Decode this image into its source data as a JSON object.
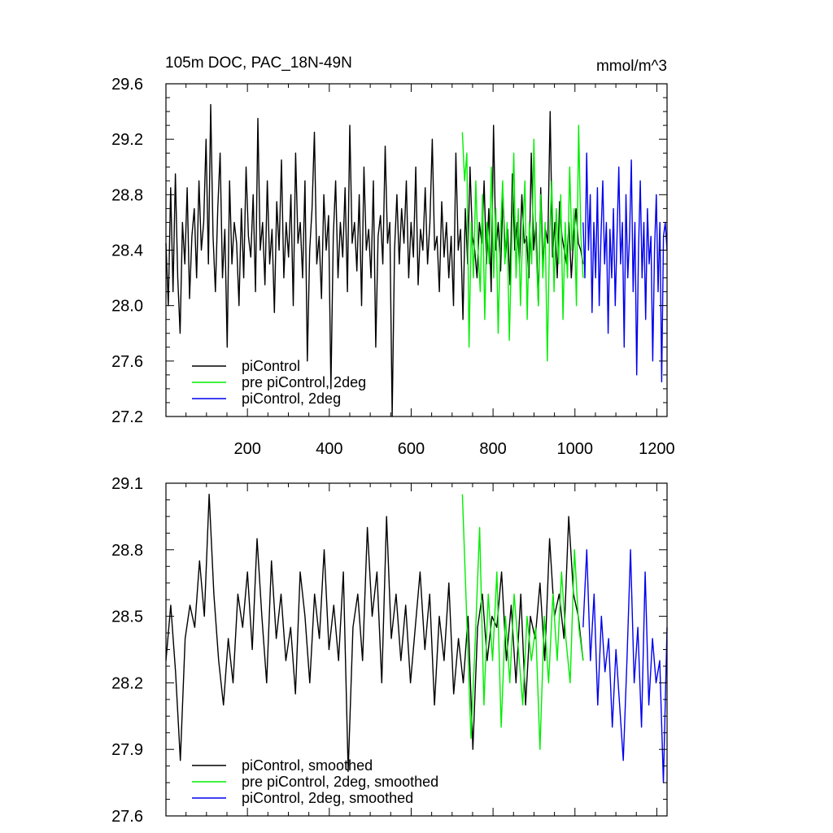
{
  "figure": {
    "title": "105m DOC, PAC_18N-49N",
    "units": "mmol/m^3"
  },
  "chart_data": [
    {
      "type": "line",
      "panel": "top",
      "xlim": [
        1,
        1225
      ],
      "ylim": [
        27.2,
        29.6
      ],
      "x_ticks": [
        200,
        400,
        600,
        800,
        1000,
        1200
      ],
      "y_ticks": [
        27.2,
        27.6,
        28.0,
        28.4,
        28.8,
        29.2,
        29.6
      ],
      "y_tick_labels": [
        "27.2",
        "27.6",
        "28.0",
        "28.4",
        "28.8",
        "29.2",
        "29.6"
      ],
      "legend_position": "bottom-left",
      "series": [
        {
          "name": "piControl",
          "color": "#000000",
          "x_start": 1,
          "x_end": 1020,
          "values": [
            28.45,
            28.0,
            28.85,
            28.1,
            28.95,
            28.2,
            27.8,
            28.6,
            28.3,
            28.85,
            28.05,
            28.5,
            28.7,
            28.2,
            28.9,
            28.4,
            28.6,
            29.2,
            28.3,
            29.45,
            28.5,
            28.1,
            28.7,
            29.1,
            28.2,
            28.55,
            27.7,
            28.9,
            28.3,
            28.6,
            28.45,
            28.0,
            28.7,
            28.2,
            29.0,
            28.5,
            28.35,
            28.8,
            28.1,
            29.35,
            28.4,
            28.6,
            28.15,
            28.9,
            28.3,
            28.55,
            27.95,
            28.75,
            28.4,
            29.05,
            28.2,
            28.6,
            28.35,
            28.8,
            28.0,
            29.1,
            28.45,
            28.6,
            28.2,
            28.9,
            27.6,
            28.4,
            28.7,
            29.25,
            28.3,
            28.5,
            28.05,
            28.8,
            28.4,
            28.65,
            27.4,
            28.5,
            28.9,
            28.2,
            28.6,
            28.35,
            28.85,
            28.1,
            29.3,
            28.45,
            28.6,
            28.25,
            28.8,
            28.0,
            29.0,
            28.4,
            28.55,
            28.2,
            28.9,
            27.7,
            28.5,
            28.65,
            28.3,
            29.15,
            28.45,
            28.6,
            27.2,
            28.4,
            28.8,
            28.3,
            28.7,
            28.45,
            28.9,
            28.2,
            28.6,
            28.35,
            29.0,
            28.15,
            28.55,
            28.4,
            28.85,
            28.3,
            28.6,
            29.2,
            28.4,
            28.5,
            28.1,
            28.75,
            28.35,
            28.6,
            28.2,
            28.5,
            28.0,
            29.1,
            28.4,
            28.55,
            27.9,
            28.7,
            28.3,
            29.0,
            28.5,
            28.4,
            28.2,
            28.6,
            28.45,
            28.9,
            28.3,
            28.7,
            28.1,
            29.3,
            28.4,
            28.6,
            28.25,
            28.8,
            28.35,
            28.55,
            28.15,
            28.95,
            28.4,
            28.6,
            28.3,
            28.8,
            28.45,
            28.5,
            28.2,
            29.1,
            28.4,
            28.6,
            28.0,
            28.85,
            28.3,
            28.55,
            28.45,
            29.4,
            28.35,
            28.6,
            28.2,
            28.75,
            28.5,
            28.4,
            28.3,
            28.6,
            28.2,
            28.5,
            28.7,
            28.45,
            28.4,
            28.3
          ]
        },
        {
          "name": "pre piControl, 2deg",
          "color": "#00ee00",
          "x_start": 725,
          "x_end": 1020,
          "values": [
            29.25,
            28.9,
            29.1,
            27.7,
            28.6,
            28.2,
            28.9,
            28.4,
            28.1,
            28.8,
            27.9,
            28.6,
            28.3,
            29.0,
            28.2,
            28.7,
            27.8,
            28.5,
            28.9,
            28.3,
            28.6,
            27.75,
            28.4,
            29.1,
            28.2,
            28.7,
            28.0,
            28.55,
            28.9,
            27.9,
            28.6,
            28.3,
            29.2,
            28.4,
            28.0,
            28.8,
            28.2,
            28.6,
            27.6,
            28.5,
            28.9,
            28.1,
            28.7,
            28.3,
            28.8,
            27.9,
            28.6,
            28.2,
            29.0,
            28.4,
            28.7,
            28.0,
            29.3,
            28.5,
            28.2
          ]
        },
        {
          "name": "piControl, 2deg",
          "color": "#0000ee",
          "x_start": 1020,
          "x_end": 1225,
          "values": [
            28.6,
            28.2,
            29.1,
            28.4,
            28.8,
            27.95,
            28.6,
            28.2,
            28.85,
            28.0,
            28.5,
            28.9,
            28.3,
            28.6,
            27.8,
            28.55,
            28.2,
            28.7,
            28.0,
            28.5,
            29.0,
            28.3,
            28.6,
            27.7,
            28.8,
            28.2,
            28.5,
            29.05,
            28.1,
            28.6,
            27.5,
            28.4,
            28.9,
            28.2,
            28.6,
            27.9,
            28.7,
            28.3,
            28.5,
            27.6,
            28.4,
            28.8,
            28.1,
            28.6,
            27.45,
            28.5,
            28.6,
            28.4
          ]
        }
      ]
    },
    {
      "type": "line",
      "panel": "bottom",
      "xlim": [
        1,
        1225
      ],
      "ylim": [
        27.6,
        29.1
      ],
      "x_ticks": [
        200,
        400,
        600,
        800,
        1000,
        1200
      ],
      "y_ticks": [
        27.6,
        27.9,
        28.2,
        28.5,
        28.8,
        29.1
      ],
      "y_tick_labels": [
        "27.6",
        "27.9",
        "28.2",
        "28.5",
        "28.8",
        "29.1"
      ],
      "legend_position": "bottom-left",
      "series": [
        {
          "name": "piControl, smoothed",
          "color": "#000000",
          "x_start": 1,
          "x_end": 1020,
          "values": [
            28.3,
            28.55,
            28.25,
            27.85,
            28.4,
            28.55,
            28.45,
            28.75,
            28.5,
            29.05,
            28.6,
            28.3,
            28.1,
            28.4,
            28.2,
            28.6,
            28.45,
            28.7,
            28.35,
            28.85,
            28.5,
            28.2,
            28.75,
            28.4,
            28.6,
            28.3,
            28.45,
            28.15,
            28.7,
            28.5,
            28.2,
            28.6,
            28.4,
            28.8,
            28.35,
            28.55,
            28.3,
            28.7,
            27.8,
            28.45,
            28.6,
            28.3,
            28.9,
            28.5,
            28.7,
            28.2,
            28.95,
            28.4,
            28.6,
            28.3,
            28.55,
            28.2,
            28.45,
            28.7,
            28.35,
            28.6,
            28.1,
            28.5,
            28.3,
            28.65,
            28.15,
            28.4,
            28.2,
            28.5,
            27.9,
            28.45,
            28.6,
            28.3,
            28.5,
            28.45,
            28.7,
            28.3,
            28.55,
            28.2,
            28.6,
            28.1,
            28.5,
            28.4,
            28.65,
            28.3,
            28.85,
            28.5,
            28.6,
            28.4,
            28.95,
            28.6,
            28.5,
            28.3
          ]
        },
        {
          "name": "pre piControl, 2deg, smoothed",
          "color": "#00ee00",
          "x_start": 725,
          "x_end": 1020,
          "values": [
            29.05,
            28.5,
            27.95,
            28.4,
            28.9,
            28.1,
            28.6,
            28.3,
            28.7,
            28.0,
            28.5,
            28.2,
            28.6,
            28.35,
            28.1,
            28.5,
            28.3,
            28.45,
            27.9,
            28.5,
            28.2,
            28.6,
            28.3,
            28.7,
            28.4,
            28.2,
            28.8,
            28.45,
            28.3
          ]
        },
        {
          "name": "piControl, 2deg, smoothed",
          "color": "#0000ee",
          "x_start": 1020,
          "x_end": 1225,
          "values": [
            28.45,
            28.8,
            28.3,
            28.6,
            28.1,
            28.5,
            28.25,
            28.4,
            28.0,
            28.35,
            28.1,
            27.85,
            28.3,
            28.8,
            28.2,
            28.45,
            28.0,
            28.7,
            28.1,
            28.4,
            28.2,
            28.3,
            27.75,
            28.45
          ]
        }
      ]
    }
  ]
}
